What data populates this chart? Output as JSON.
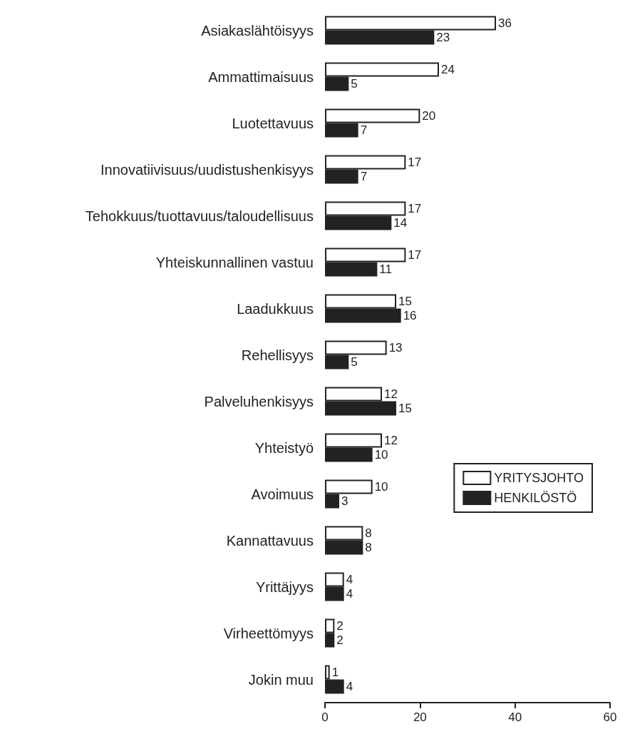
{
  "chart_data": {
    "type": "bar",
    "orientation": "horizontal",
    "categories": [
      "Asiakaslähtöisyys",
      "Ammattimaisuus",
      "Luotettavuus",
      "Innovatiivisuus/uudistushenkisyys",
      "Tehokkuus/tuottavuus/taloudellisuus",
      "Yhteiskunnallinen vastuu",
      "Laadukkuus",
      "Rehellisyys",
      "Palveluhenkisyys",
      "Yhteistyö",
      "Avoimuus",
      "Kannattavuus",
      "Yrittäjyys",
      "Virheettömyys",
      "Jokin muu"
    ],
    "series": [
      {
        "name": "YRITYSJOHTO",
        "color": "#ffffff",
        "values": [
          36,
          24,
          20,
          17,
          17,
          17,
          15,
          13,
          12,
          12,
          10,
          8,
          4,
          2,
          1
        ]
      },
      {
        "name": "HENKILÖSTÖ",
        "color": "#222222",
        "values": [
          23,
          5,
          7,
          7,
          14,
          11,
          16,
          5,
          15,
          10,
          3,
          8,
          4,
          2,
          4
        ]
      }
    ],
    "xlim": [
      0,
      60
    ],
    "xticks": [
      0,
      20,
      40,
      60
    ],
    "data_labels": true,
    "legend": "right",
    "grid": false
  }
}
